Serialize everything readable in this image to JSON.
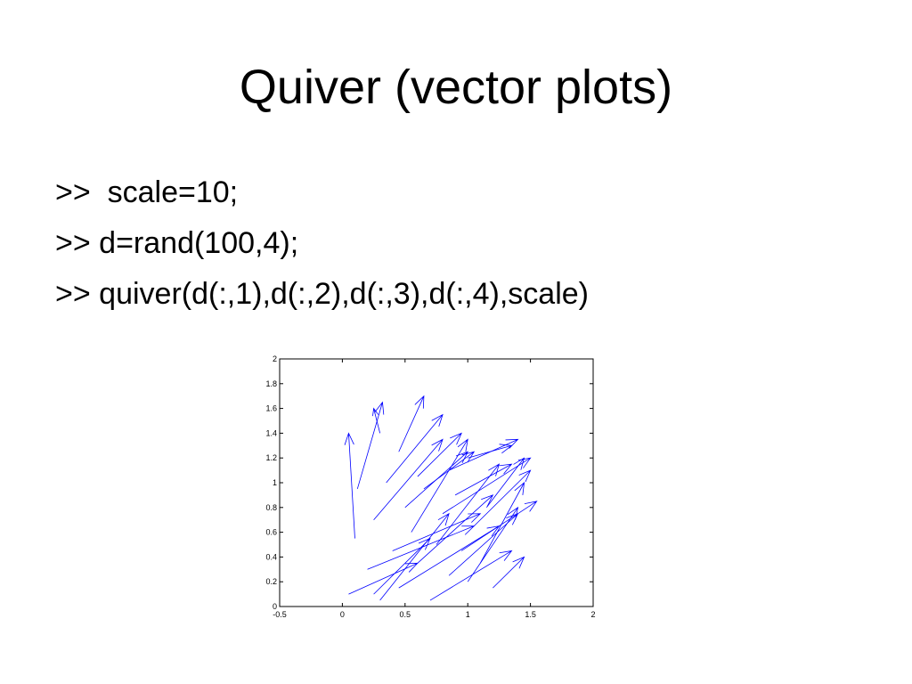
{
  "slide": {
    "title": "Quiver (vector plots)",
    "code_lines": [
      ">>  scale=10;",
      ">> d=rand(100,4);",
      ">> quiver(d(:,1),d(:,2),d(:,3),d(:,4),scale)"
    ]
  },
  "chart_data": {
    "type": "quiver",
    "xlim": [
      -0.5,
      2
    ],
    "ylim": [
      0,
      2
    ],
    "xticks": [
      "-0.5",
      "0",
      "0.5",
      "1",
      "1.5",
      "2"
    ],
    "yticks": [
      "0",
      "0.2",
      "0.4",
      "0.6",
      "0.8",
      "1",
      "1.2",
      "1.4",
      "1.6",
      "1.8",
      "2"
    ],
    "grid": false,
    "series_color": "#0000ff",
    "vectors": [
      {
        "x": 0.05,
        "y": 0.1,
        "u": 0.55,
        "v": 0.25
      },
      {
        "x": 0.1,
        "y": 0.55,
        "u": -0.05,
        "v": 0.85
      },
      {
        "x": 0.12,
        "y": 0.95,
        "u": 0.2,
        "v": 0.7
      },
      {
        "x": 0.2,
        "y": 0.3,
        "u": 0.85,
        "v": 0.35
      },
      {
        "x": 0.25,
        "y": 0.7,
        "u": 0.55,
        "v": 0.65
      },
      {
        "x": 0.3,
        "y": 0.05,
        "u": 0.55,
        "v": 0.7
      },
      {
        "x": 0.35,
        "y": 1.0,
        "u": 0.45,
        "v": 0.55
      },
      {
        "x": 0.4,
        "y": 0.45,
        "u": 0.7,
        "v": 0.3
      },
      {
        "x": 0.45,
        "y": 0.15,
        "u": 0.8,
        "v": 0.5
      },
      {
        "x": 0.5,
        "y": 0.8,
        "u": 0.5,
        "v": 0.45
      },
      {
        "x": 0.55,
        "y": 0.6,
        "u": 0.45,
        "v": 0.75
      },
      {
        "x": 0.6,
        "y": 0.35,
        "u": 0.6,
        "v": 0.55
      },
      {
        "x": 0.65,
        "y": 0.95,
        "u": 0.4,
        "v": 0.3
      },
      {
        "x": 0.7,
        "y": 0.05,
        "u": 0.65,
        "v": 0.4
      },
      {
        "x": 0.75,
        "y": 0.5,
        "u": 0.5,
        "v": 0.65
      },
      {
        "x": 0.8,
        "y": 0.75,
        "u": 0.7,
        "v": 0.45
      },
      {
        "x": 0.85,
        "y": 0.25,
        "u": 0.55,
        "v": 0.5
      },
      {
        "x": 0.9,
        "y": 0.9,
        "u": 0.45,
        "v": 0.25
      },
      {
        "x": 0.95,
        "y": 0.45,
        "u": 0.6,
        "v": 0.4
      },
      {
        "x": 1.0,
        "y": 0.2,
        "u": 0.4,
        "v": 0.6
      },
      {
        "x": 1.05,
        "y": 0.65,
        "u": 0.45,
        "v": 0.45
      },
      {
        "x": 1.1,
        "y": 0.35,
        "u": 0.35,
        "v": 0.65
      },
      {
        "x": 1.15,
        "y": 0.8,
        "u": 0.3,
        "v": 0.4
      },
      {
        "x": 1.2,
        "y": 0.15,
        "u": 0.25,
        "v": 0.25
      },
      {
        "x": 1.0,
        "y": 1.2,
        "u": 0.35,
        "v": 0.1
      },
      {
        "x": 0.45,
        "y": 1.25,
        "u": 0.2,
        "v": 0.45
      },
      {
        "x": 0.3,
        "y": 1.4,
        "u": -0.05,
        "v": 0.2
      },
      {
        "x": 0.85,
        "y": 1.1,
        "u": 0.55,
        "v": 0.25
      },
      {
        "x": 0.25,
        "y": 0.1,
        "u": 0.45,
        "v": 0.45
      },
      {
        "x": 0.6,
        "y": 1.05,
        "u": 0.35,
        "v": 0.35
      }
    ]
  }
}
